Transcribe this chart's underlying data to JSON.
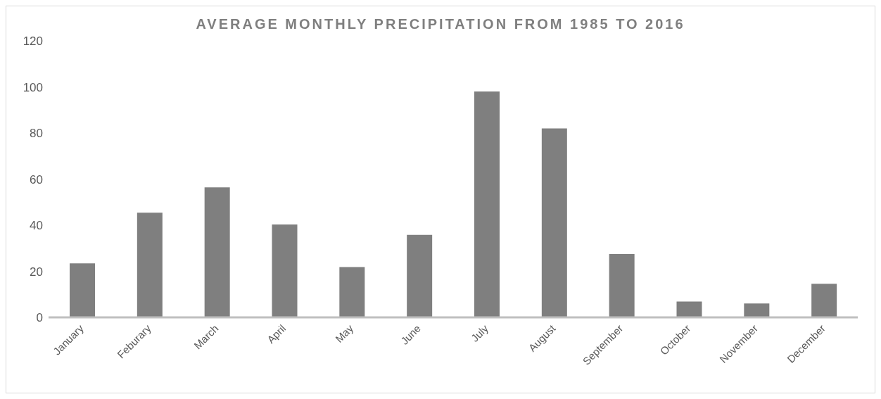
{
  "chart_data": {
    "type": "bar",
    "title": "AVERAGE MONTHLY PRECIPITATION FROM 1985 TO 2016",
    "categories": [
      "January",
      "Feburary",
      "March",
      "April",
      "May",
      "June",
      "July",
      "August",
      "September",
      "October",
      "November",
      "December"
    ],
    "values": [
      23.4,
      45.4,
      56.4,
      40.3,
      21.8,
      35.8,
      98,
      82,
      27.5,
      6.9,
      6,
      14.6
    ],
    "color": "#7f7f7f",
    "ylim": [
      0,
      120
    ],
    "yticks": [
      0,
      20,
      40,
      60,
      80,
      100,
      120
    ],
    "grid": false
  }
}
